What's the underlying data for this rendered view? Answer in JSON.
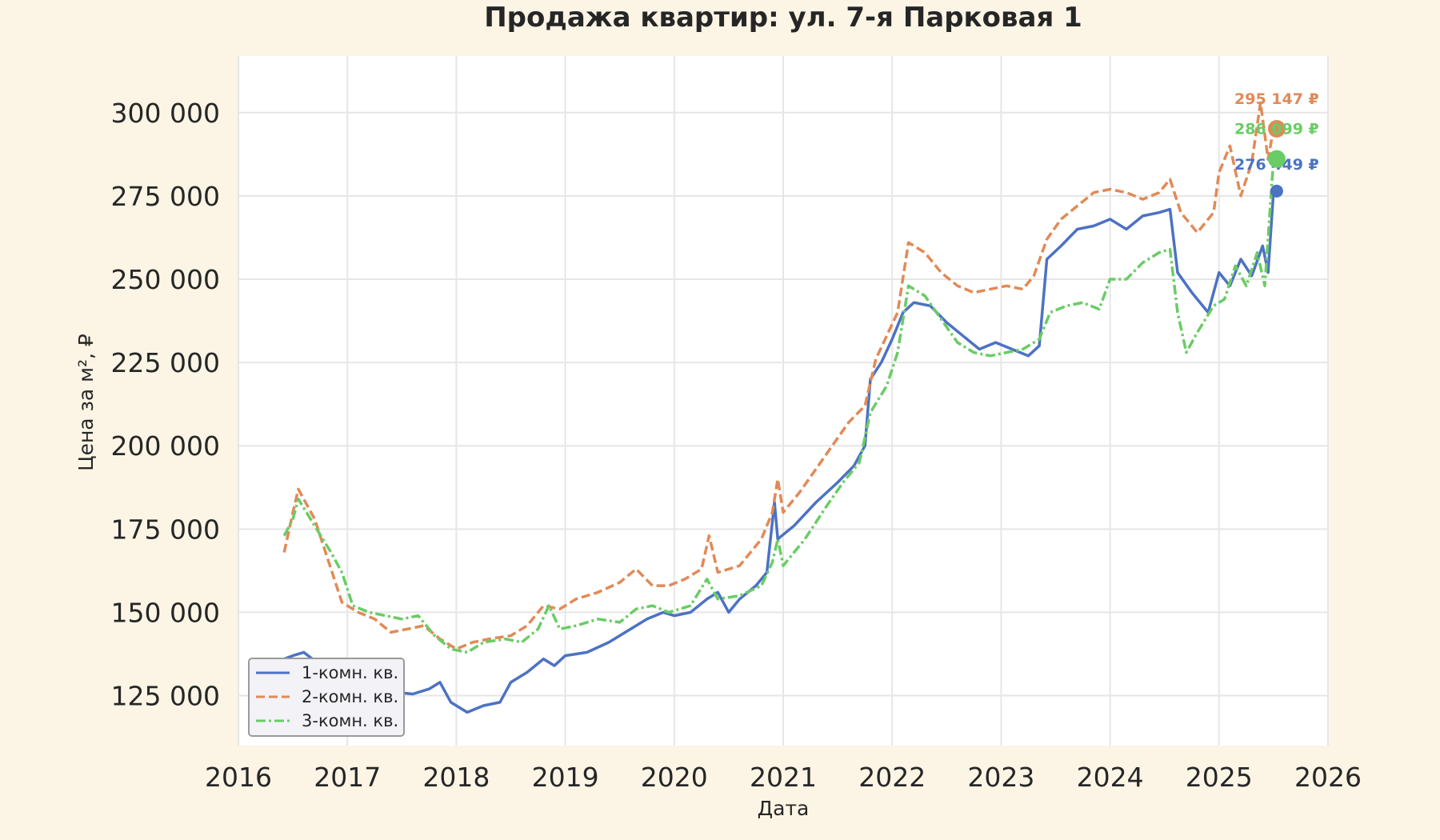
{
  "chart_data": {
    "type": "line",
    "title": "Продажа квартир: ул. 7-я Парковая 1",
    "xlabel": "Дата",
    "ylabel": "Цена за м², ₽",
    "xlim": [
      2016,
      2026
    ],
    "ylim": [
      110000,
      317000
    ],
    "x_ticks": [
      "2016",
      "2017",
      "2018",
      "2019",
      "2020",
      "2021",
      "2022",
      "2023",
      "2024",
      "2025",
      "2026"
    ],
    "y_ticks": [
      "125 000",
      "150 000",
      "175 000",
      "200 000",
      "225 000",
      "250 000",
      "275 000",
      "300 000"
    ],
    "y_tick_values": [
      125000,
      150000,
      175000,
      200000,
      225000,
      250000,
      275000,
      300000
    ],
    "grid": true,
    "legend_position": "lower-left",
    "series": [
      {
        "name": "1-комн. кв.",
        "color": "#4c72c4",
        "style": "solid",
        "end_label": "276 449 ₽",
        "end_value": 276449,
        "points": [
          [
            2016.42,
            136000
          ],
          [
            2016.5,
            137000
          ],
          [
            2016.6,
            138000
          ],
          [
            2016.8,
            133000
          ],
          [
            2016.95,
            131000
          ],
          [
            2017.1,
            129000
          ],
          [
            2017.3,
            128000
          ],
          [
            2017.45,
            126000
          ],
          [
            2017.6,
            125500
          ],
          [
            2017.75,
            127000
          ],
          [
            2017.85,
            129000
          ],
          [
            2017.95,
            123000
          ],
          [
            2018.1,
            120000
          ],
          [
            2018.25,
            122000
          ],
          [
            2018.4,
            123000
          ],
          [
            2018.5,
            129000
          ],
          [
            2018.65,
            132000
          ],
          [
            2018.8,
            136000
          ],
          [
            2018.9,
            134000
          ],
          [
            2019.0,
            137000
          ],
          [
            2019.2,
            138000
          ],
          [
            2019.4,
            141000
          ],
          [
            2019.6,
            145000
          ],
          [
            2019.75,
            148000
          ],
          [
            2019.9,
            150000
          ],
          [
            2020.0,
            149000
          ],
          [
            2020.15,
            150000
          ],
          [
            2020.3,
            154000
          ],
          [
            2020.4,
            156000
          ],
          [
            2020.5,
            150000
          ],
          [
            2020.6,
            154000
          ],
          [
            2020.75,
            158000
          ],
          [
            2020.85,
            162000
          ],
          [
            2020.92,
            183000
          ],
          [
            2020.95,
            172000
          ],
          [
            2021.1,
            176000
          ],
          [
            2021.3,
            183000
          ],
          [
            2021.5,
            189000
          ],
          [
            2021.65,
            194000
          ],
          [
            2021.75,
            200000
          ],
          [
            2021.8,
            220000
          ],
          [
            2021.9,
            225000
          ],
          [
            2022.0,
            232000
          ],
          [
            2022.1,
            240000
          ],
          [
            2022.2,
            243000
          ],
          [
            2022.35,
            242000
          ],
          [
            2022.5,
            237000
          ],
          [
            2022.65,
            233000
          ],
          [
            2022.8,
            229000
          ],
          [
            2022.95,
            231000
          ],
          [
            2023.1,
            229000
          ],
          [
            2023.25,
            227000
          ],
          [
            2023.35,
            230000
          ],
          [
            2023.42,
            256000
          ],
          [
            2023.55,
            260000
          ],
          [
            2023.7,
            265000
          ],
          [
            2023.85,
            266000
          ],
          [
            2024.0,
            268000
          ],
          [
            2024.15,
            265000
          ],
          [
            2024.3,
            269000
          ],
          [
            2024.45,
            270000
          ],
          [
            2024.55,
            271000
          ],
          [
            2024.62,
            252000
          ],
          [
            2024.75,
            246000
          ],
          [
            2024.9,
            240000
          ],
          [
            2025.0,
            252000
          ],
          [
            2025.1,
            248000
          ],
          [
            2025.2,
            256000
          ],
          [
            2025.3,
            251000
          ],
          [
            2025.4,
            260000
          ],
          [
            2025.45,
            252000
          ],
          [
            2025.5,
            276449
          ]
        ]
      },
      {
        "name": "2-комн. кв.",
        "color": "#e18a57",
        "style": "dashed",
        "end_label": "295 147 ₽",
        "end_value": 295147,
        "points": [
          [
            2016.42,
            168000
          ],
          [
            2016.5,
            180000
          ],
          [
            2016.55,
            187000
          ],
          [
            2016.7,
            178000
          ],
          [
            2016.85,
            163000
          ],
          [
            2016.95,
            153000
          ],
          [
            2017.1,
            150000
          ],
          [
            2017.25,
            148000
          ],
          [
            2017.4,
            144000
          ],
          [
            2017.55,
            145000
          ],
          [
            2017.7,
            146000
          ],
          [
            2017.85,
            142000
          ],
          [
            2018.0,
            139000
          ],
          [
            2018.15,
            141000
          ],
          [
            2018.3,
            142000
          ],
          [
            2018.5,
            143000
          ],
          [
            2018.65,
            146000
          ],
          [
            2018.8,
            152000
          ],
          [
            2018.95,
            151000
          ],
          [
            2019.1,
            154000
          ],
          [
            2019.3,
            156000
          ],
          [
            2019.5,
            159000
          ],
          [
            2019.65,
            163000
          ],
          [
            2019.8,
            158000
          ],
          [
            2019.95,
            158000
          ],
          [
            2020.1,
            160000
          ],
          [
            2020.25,
            163000
          ],
          [
            2020.32,
            173000
          ],
          [
            2020.4,
            162000
          ],
          [
            2020.6,
            164000
          ],
          [
            2020.8,
            172000
          ],
          [
            2020.9,
            180000
          ],
          [
            2020.95,
            190000
          ],
          [
            2021.0,
            180000
          ],
          [
            2021.15,
            186000
          ],
          [
            2021.3,
            193000
          ],
          [
            2021.45,
            200000
          ],
          [
            2021.6,
            207000
          ],
          [
            2021.75,
            212000
          ],
          [
            2021.85,
            226000
          ],
          [
            2021.95,
            233000
          ],
          [
            2022.05,
            240000
          ],
          [
            2022.15,
            261000
          ],
          [
            2022.3,
            258000
          ],
          [
            2022.45,
            252000
          ],
          [
            2022.6,
            248000
          ],
          [
            2022.75,
            246000
          ],
          [
            2022.9,
            247000
          ],
          [
            2023.05,
            248000
          ],
          [
            2023.2,
            247000
          ],
          [
            2023.3,
            251000
          ],
          [
            2023.42,
            262000
          ],
          [
            2023.55,
            268000
          ],
          [
            2023.7,
            272000
          ],
          [
            2023.85,
            276000
          ],
          [
            2024.0,
            277000
          ],
          [
            2024.15,
            276000
          ],
          [
            2024.3,
            274000
          ],
          [
            2024.45,
            276000
          ],
          [
            2024.55,
            280000
          ],
          [
            2024.65,
            270000
          ],
          [
            2024.8,
            264000
          ],
          [
            2024.95,
            270000
          ],
          [
            2025.0,
            282000
          ],
          [
            2025.1,
            290000
          ],
          [
            2025.2,
            275000
          ],
          [
            2025.3,
            285000
          ],
          [
            2025.38,
            303000
          ],
          [
            2025.45,
            286000
          ],
          [
            2025.5,
            295147
          ]
        ]
      },
      {
        "name": "3-комн. кв.",
        "color": "#6acc65",
        "style": "dashdot",
        "end_label": "286 099 ₽",
        "end_value": 286099,
        "points": [
          [
            2016.42,
            173000
          ],
          [
            2016.5,
            178000
          ],
          [
            2016.55,
            184000
          ],
          [
            2016.7,
            176000
          ],
          [
            2016.85,
            168000
          ],
          [
            2016.95,
            162000
          ],
          [
            2017.05,
            152000
          ],
          [
            2017.2,
            150000
          ],
          [
            2017.35,
            149000
          ],
          [
            2017.5,
            148000
          ],
          [
            2017.65,
            149000
          ],
          [
            2017.8,
            143000
          ],
          [
            2017.95,
            139000
          ],
          [
            2018.1,
            138000
          ],
          [
            2018.25,
            141000
          ],
          [
            2018.45,
            142000
          ],
          [
            2018.6,
            141000
          ],
          [
            2018.75,
            145000
          ],
          [
            2018.85,
            152000
          ],
          [
            2018.95,
            145000
          ],
          [
            2019.1,
            146000
          ],
          [
            2019.3,
            148000
          ],
          [
            2019.5,
            147000
          ],
          [
            2019.65,
            151000
          ],
          [
            2019.8,
            152000
          ],
          [
            2019.95,
            150000
          ],
          [
            2020.15,
            152000
          ],
          [
            2020.3,
            160000
          ],
          [
            2020.4,
            154000
          ],
          [
            2020.6,
            155000
          ],
          [
            2020.8,
            158000
          ],
          [
            2020.9,
            165000
          ],
          [
            2020.95,
            172000
          ],
          [
            2021.0,
            164000
          ],
          [
            2021.2,
            172000
          ],
          [
            2021.4,
            182000
          ],
          [
            2021.55,
            189000
          ],
          [
            2021.7,
            195000
          ],
          [
            2021.8,
            210000
          ],
          [
            2021.95,
            218000
          ],
          [
            2022.05,
            228000
          ],
          [
            2022.15,
            248000
          ],
          [
            2022.3,
            245000
          ],
          [
            2022.45,
            238000
          ],
          [
            2022.6,
            231000
          ],
          [
            2022.75,
            228000
          ],
          [
            2022.9,
            227000
          ],
          [
            2023.05,
            228000
          ],
          [
            2023.2,
            229000
          ],
          [
            2023.35,
            232000
          ],
          [
            2023.45,
            240000
          ],
          [
            2023.6,
            242000
          ],
          [
            2023.75,
            243000
          ],
          [
            2023.9,
            241000
          ],
          [
            2024.0,
            250000
          ],
          [
            2024.15,
            250000
          ],
          [
            2024.3,
            255000
          ],
          [
            2024.45,
            258000
          ],
          [
            2024.55,
            259000
          ],
          [
            2024.62,
            240000
          ],
          [
            2024.7,
            228000
          ],
          [
            2024.8,
            234000
          ],
          [
            2024.95,
            242000
          ],
          [
            2025.05,
            244000
          ],
          [
            2025.15,
            254000
          ],
          [
            2025.25,
            248000
          ],
          [
            2025.35,
            258000
          ],
          [
            2025.42,
            248000
          ],
          [
            2025.5,
            286099
          ]
        ]
      }
    ]
  }
}
